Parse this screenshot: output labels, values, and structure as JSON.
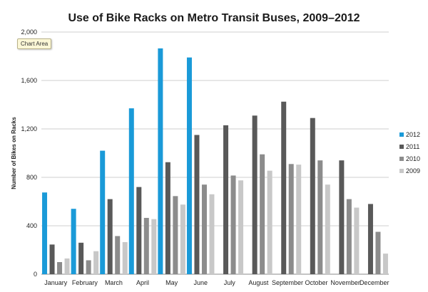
{
  "tooltip": "Chart Area",
  "chart_data": {
    "type": "bar",
    "title": "Use of Bike Racks on Metro Transit Buses, 2009–2012",
    "xlabel": "",
    "ylabel": "Number of Bikes on Racks",
    "ylim": [
      0,
      2000
    ],
    "yticks": [
      0,
      400,
      800,
      1200,
      1600,
      2000
    ],
    "ytick_labels": [
      "0",
      "400",
      "800",
      "1,200",
      "1,600",
      "2,000"
    ],
    "grid": true,
    "legend_position": "right",
    "categories": [
      "January",
      "February",
      "March",
      "April",
      "May",
      "June",
      "July",
      "August",
      "September",
      "October",
      "November",
      "December"
    ],
    "series": [
      {
        "name": "2012",
        "color": "#1a9ad8",
        "values": [
          675,
          540,
          1020,
          1370,
          1865,
          1790,
          null,
          null,
          null,
          null,
          null,
          null
        ]
      },
      {
        "name": "2011",
        "color": "#595959",
        "values": [
          245,
          260,
          620,
          720,
          925,
          1150,
          1230,
          1310,
          1425,
          1290,
          940,
          580
        ]
      },
      {
        "name": "2010",
        "color": "#8c8c8c",
        "values": [
          100,
          115,
          315,
          465,
          645,
          740,
          815,
          990,
          910,
          940,
          620,
          350
        ]
      },
      {
        "name": "2009",
        "color": "#c8c8c8",
        "values": [
          130,
          190,
          265,
          455,
          575,
          660,
          775,
          855,
          905,
          740,
          550,
          170
        ]
      }
    ]
  }
}
